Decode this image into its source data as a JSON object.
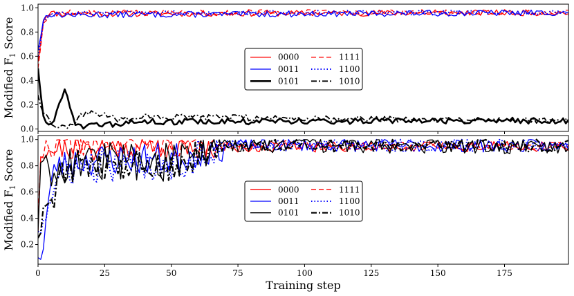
{
  "chart_data": [
    {
      "type": "line",
      "panel": "top",
      "xlabel": "",
      "ylabel": "Modified F",
      "ylabel_sub": "1",
      "ylabel_suffix": " Score",
      "xlim": [
        0,
        199
      ],
      "ylim": [
        -0.02,
        1.03
      ],
      "yticks": [
        0.0,
        0.2,
        0.4,
        0.6,
        0.8,
        1.0
      ],
      "ytick_labels": [
        "0.0",
        "0.2",
        "0.4",
        "0.6",
        "0.8",
        "1.0"
      ],
      "xticks": [
        0,
        25,
        50,
        75,
        100,
        125,
        150,
        175
      ],
      "show_xtick_labels": false,
      "legend_position": "center",
      "series": [
        {
          "name": "0000",
          "color": "#ff0000",
          "dash": "solid",
          "width": 1.3,
          "anchors": [
            [
              0,
              0.55
            ],
            [
              2,
              0.9
            ],
            [
              4,
              0.96
            ],
            [
              8,
              0.95
            ],
            [
              199,
              0.96
            ]
          ],
          "noise": 0.025,
          "seed": 11
        },
        {
          "name": "1111",
          "color": "#ff0000",
          "dash": "dashed",
          "width": 1.3,
          "anchors": [
            [
              0,
              0.5
            ],
            [
              2,
              0.88
            ],
            [
              4,
              0.95
            ],
            [
              8,
              0.96
            ],
            [
              199,
              0.96
            ]
          ],
          "noise": 0.025,
          "seed": 12
        },
        {
          "name": "0011",
          "color": "#0000ff",
          "dash": "solid",
          "width": 1.3,
          "anchors": [
            [
              0,
              0.65
            ],
            [
              2,
              0.9
            ],
            [
              4,
              0.95
            ],
            [
              8,
              0.94
            ],
            [
              199,
              0.96
            ]
          ],
          "noise": 0.025,
          "seed": 13
        },
        {
          "name": "1100",
          "color": "#0000ff",
          "dash": "dotted",
          "width": 2,
          "anchors": [
            [
              0,
              0.6
            ],
            [
              2,
              0.88
            ],
            [
              4,
              0.94
            ],
            [
              8,
              0.96
            ],
            [
              199,
              0.96
            ]
          ],
          "noise": 0.02,
          "seed": 14
        },
        {
          "name": "0101",
          "color": "#000000",
          "dash": "solid",
          "width": 2.6,
          "anchors": [
            [
              0,
              0.5
            ],
            [
              1,
              0.3
            ],
            [
              2,
              0.1
            ],
            [
              4,
              0.05
            ],
            [
              6,
              0.05
            ],
            [
              8,
              0.22
            ],
            [
              10,
              0.33
            ],
            [
              12,
              0.2
            ],
            [
              14,
              0.05
            ],
            [
              18,
              0.02
            ],
            [
              25,
              0.03
            ],
            [
              40,
              0.06
            ],
            [
              199,
              0.07
            ]
          ],
          "noise": 0.025,
          "seed": 15
        },
        {
          "name": "1010",
          "color": "#000000",
          "dash": "dashdot",
          "width": 1.8,
          "anchors": [
            [
              0,
              0.28
            ],
            [
              2,
              0.12
            ],
            [
              4,
              0.1
            ],
            [
              6,
              0.02
            ],
            [
              12,
              0.03
            ],
            [
              18,
              0.14
            ],
            [
              24,
              0.12
            ],
            [
              30,
              0.08
            ],
            [
              40,
              0.1
            ],
            [
              199,
              0.07
            ]
          ],
          "noise": 0.025,
          "seed": 16
        }
      ]
    },
    {
      "type": "line",
      "panel": "bottom",
      "xlabel": "Training step",
      "ylabel": "Modified F",
      "ylabel_sub": "1",
      "ylabel_suffix": " Score",
      "xlim": [
        0,
        199
      ],
      "ylim": [
        0.05,
        1.03
      ],
      "yticks": [
        0.2,
        0.4,
        0.6,
        0.8,
        1.0
      ],
      "ytick_labels": [
        "0.2",
        "0.4",
        "0.6",
        "0.8",
        "1.0"
      ],
      "xticks": [
        0,
        25,
        50,
        75,
        100,
        125,
        150,
        175
      ],
      "xtick_labels": [
        "0",
        "25",
        "50",
        "75",
        "100",
        "125",
        "150",
        "175"
      ],
      "show_xtick_labels": true,
      "legend_position": "center",
      "series": [
        {
          "name": "0000",
          "color": "#ff0000",
          "dash": "solid",
          "width": 1.3,
          "anchors": [
            [
              0,
              0.3
            ],
            [
              1,
              0.92
            ],
            [
              5,
              0.93
            ],
            [
              30,
              0.94
            ],
            [
              60,
              0.94
            ],
            [
              199,
              0.95
            ]
          ],
          "noise": 0.04,
          "seed": 21
        },
        {
          "name": "1111",
          "color": "#ff0000",
          "dash": "dashed",
          "width": 1.3,
          "anchors": [
            [
              0,
              0.4
            ],
            [
              1,
              0.9
            ],
            [
              5,
              0.95
            ],
            [
              30,
              0.96
            ],
            [
              60,
              0.96
            ],
            [
              199,
              0.95
            ]
          ],
          "noise": 0.035,
          "seed": 22
        },
        {
          "name": "0011",
          "color": "#0000ff",
          "dash": "solid",
          "width": 1.3,
          "anchors": [
            [
              0,
              0.1
            ],
            [
              2,
              0.2
            ],
            [
              4,
              0.55
            ],
            [
              7,
              0.82
            ],
            [
              10,
              0.8
            ],
            [
              15,
              0.84
            ],
            [
              30,
              0.85
            ],
            [
              55,
              0.86
            ],
            [
              62,
              0.92
            ],
            [
              70,
              0.96
            ],
            [
              199,
              0.95
            ]
          ],
          "noise": 0.05,
          "seed": 23
        },
        {
          "name": "1100",
          "color": "#0000ff",
          "dash": "dotted",
          "width": 2,
          "anchors": [
            [
              0,
              0.3
            ],
            [
              3,
              0.45
            ],
            [
              6,
              0.6
            ],
            [
              9,
              0.74
            ],
            [
              14,
              0.78
            ],
            [
              30,
              0.8
            ],
            [
              55,
              0.82
            ],
            [
              62,
              0.9
            ],
            [
              70,
              0.96
            ],
            [
              199,
              0.95
            ]
          ],
          "noise": 0.05,
          "seed": 24
        },
        {
          "name": "0101",
          "color": "#000000",
          "dash": "solid",
          "width": 1.4,
          "anchors": [
            [
              0,
              0.3
            ],
            [
              1,
              0.9
            ],
            [
              3,
              0.75
            ],
            [
              6,
              0.8
            ],
            [
              12,
              0.82
            ],
            [
              30,
              0.84
            ],
            [
              55,
              0.82
            ],
            [
              62,
              0.9
            ],
            [
              70,
              0.96
            ],
            [
              199,
              0.95
            ]
          ],
          "noise": 0.06,
          "seed": 25
        },
        {
          "name": "1010",
          "color": "#000000",
          "dash": "dashdot",
          "width": 2.2,
          "anchors": [
            [
              0,
              0.25
            ],
            [
              2,
              0.45
            ],
            [
              5,
              0.5
            ],
            [
              8,
              0.75
            ],
            [
              12,
              0.8
            ],
            [
              30,
              0.82
            ],
            [
              55,
              0.8
            ],
            [
              62,
              0.9
            ],
            [
              70,
              0.96
            ],
            [
              199,
              0.95
            ]
          ],
          "noise": 0.05,
          "seed": 26
        }
      ]
    }
  ]
}
